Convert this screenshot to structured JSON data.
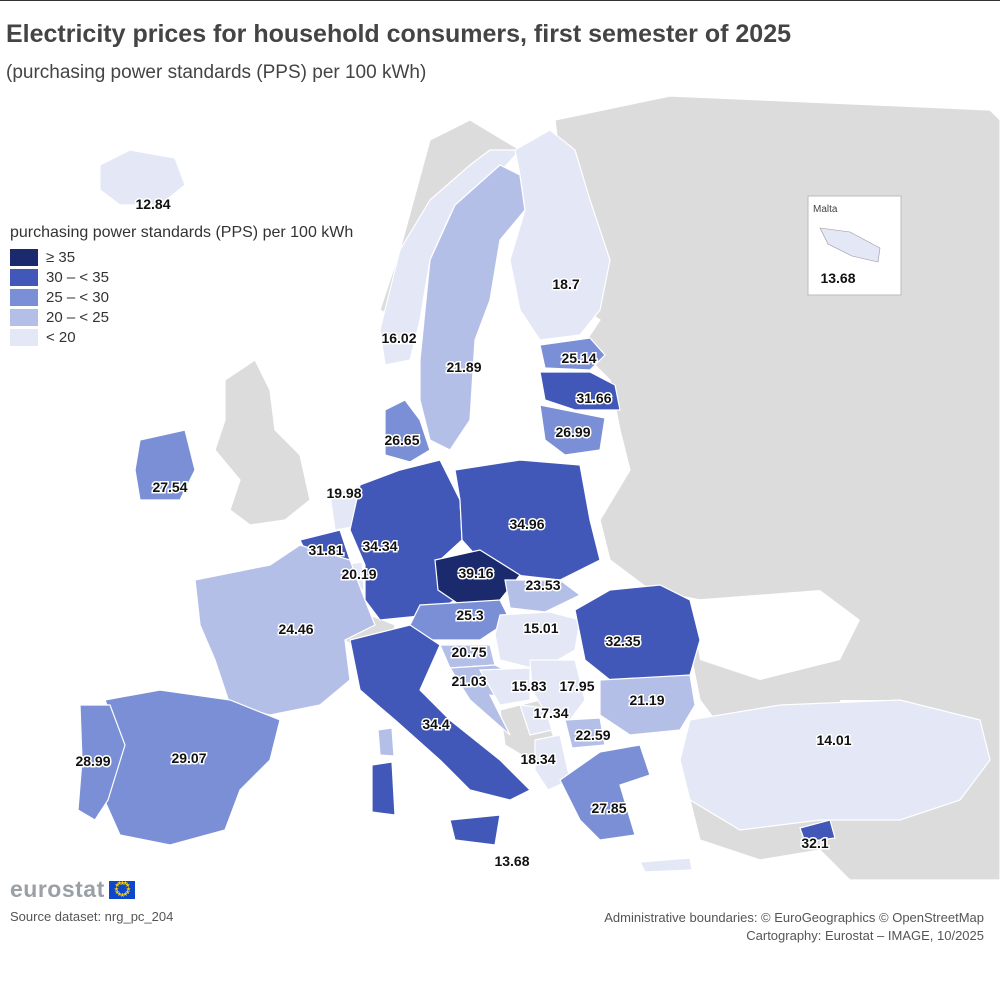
{
  "title": "Electricity prices for household consumers, first semester of 2025",
  "subtitle": "(purchasing power standards (PPS) per 100 kWh)",
  "legend": {
    "title": "purchasing power standards (PPS) per 100 kWh",
    "classes": [
      {
        "label": "≥ 35",
        "color": "#1a2a6c"
      },
      {
        "label": "30 – < 35",
        "color": "#4158b8"
      },
      {
        "label": "25 – < 30",
        "color": "#7a8fd6"
      },
      {
        "label": "20 – < 25",
        "color": "#b4bfe8"
      },
      {
        "label": "< 20",
        "color": "#e3e7f6"
      }
    ]
  },
  "inset_title": "Malta",
  "values": [
    {
      "label": "12.84"
    },
    {
      "label": "16.02"
    },
    {
      "label": "21.89"
    },
    {
      "label": "18.7"
    },
    {
      "label": "25.14"
    },
    {
      "label": "31.66"
    },
    {
      "label": "26.99"
    },
    {
      "label": "26.65"
    },
    {
      "label": "27.54"
    },
    {
      "label": "19.98"
    },
    {
      "label": "31.81"
    },
    {
      "label": "34.34"
    },
    {
      "label": "20.19"
    },
    {
      "label": "34.96"
    },
    {
      "label": "39.16"
    },
    {
      "label": "23.53"
    },
    {
      "label": "24.46"
    },
    {
      "label": "25.3"
    },
    {
      "label": "15.01"
    },
    {
      "label": "32.35"
    },
    {
      "label": "20.75"
    },
    {
      "label": "21.03"
    },
    {
      "label": "15.83"
    },
    {
      "label": "17.95"
    },
    {
      "label": "21.19"
    },
    {
      "label": "17.34"
    },
    {
      "label": "22.59"
    },
    {
      "label": "18.34"
    },
    {
      "label": "34.4"
    },
    {
      "label": "28.99"
    },
    {
      "label": "29.07"
    },
    {
      "label": "27.85"
    },
    {
      "label": "13.68"
    },
    {
      "label": "14.01"
    },
    {
      "label": "32.1"
    },
    {
      "label": "13.68"
    }
  ],
  "brand": "eurostat",
  "source": "Source dataset: nrg_pc_204",
  "credits": {
    "line1": "Administrative boundaries: © EuroGeographics © OpenStreetMap",
    "line2": "Cartography: Eurostat – IMAGE, 10/2025"
  }
}
